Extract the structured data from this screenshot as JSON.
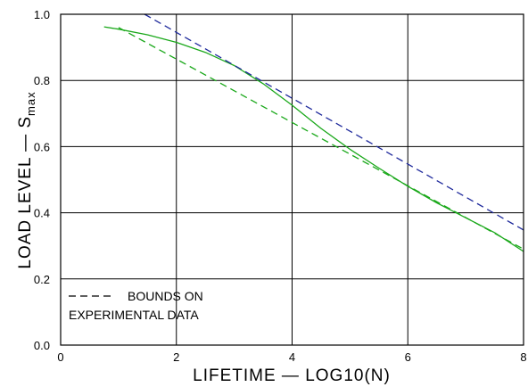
{
  "chart_data": {
    "type": "line",
    "xlabel": "LIFETIME  —  LOG10(N)",
    "ylabel_main": "LOAD  LEVEL  —  S",
    "ylabel_sub": "max",
    "xlim": [
      0,
      8
    ],
    "ylim": [
      0.0,
      1.0
    ],
    "x_ticks": [
      "0",
      "2",
      "4",
      "6",
      "8"
    ],
    "y_ticks": [
      "0.0",
      "0.2",
      "0.4",
      "0.6",
      "0.8",
      "1.0"
    ],
    "grid": true,
    "legend_location": "bottom-left",
    "legend_lines": [
      "BOUNDS ON",
      "EXPERIMENTAL DATA"
    ],
    "colors": {
      "green": "#1aa81a",
      "blue": "#1f2a9c",
      "grid": "#000000"
    },
    "series": [
      {
        "style": "solid",
        "color": "green",
        "x": [
          0.75,
          1.0,
          1.5,
          2.0,
          2.5,
          3.0,
          3.5,
          4.0,
          4.5,
          5.0,
          5.5,
          6.0,
          6.5,
          7.0,
          7.5,
          8.0
        ],
        "y": [
          0.962,
          0.955,
          0.938,
          0.915,
          0.885,
          0.845,
          0.79,
          0.725,
          0.655,
          0.592,
          0.535,
          0.48,
          0.43,
          0.385,
          0.34,
          0.283
        ]
      },
      {
        "style": "dashed",
        "color": "green",
        "x": [
          1.0,
          8.0
        ],
        "y": [
          0.96,
          0.29
        ]
      },
      {
        "style": "dashed",
        "color": "blue",
        "x": [
          1.45,
          8.0
        ],
        "y": [
          1.0,
          0.348
        ]
      }
    ]
  }
}
